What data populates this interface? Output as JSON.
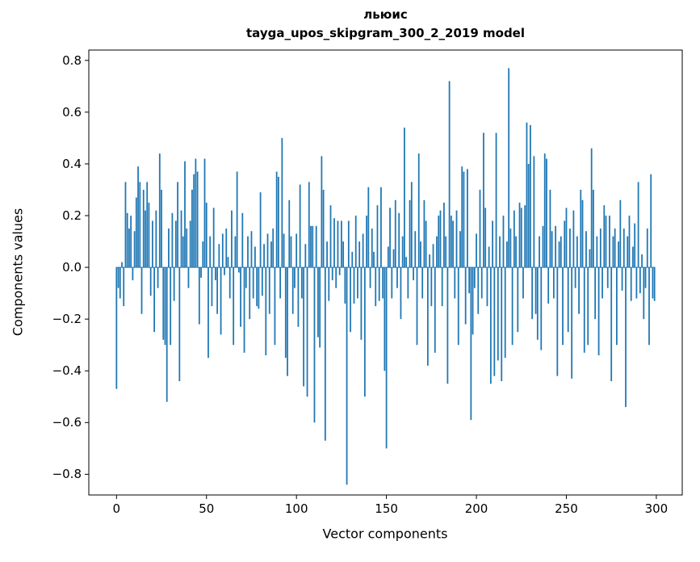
{
  "figure": {
    "title_line1": "льюис",
    "title_line2": "tayga_upos_skipgram_300_2_2019 model",
    "xlabel": "Vector components",
    "ylabel": "Components values"
  },
  "chart_data": {
    "type": "bar",
    "title": "льюис\ntayga_upos_skipgram_300_2_2019 model",
    "xlabel": "Vector components",
    "ylabel": "Components values",
    "bar_color": "#1f77b4",
    "grid": false,
    "legend": "none",
    "xlim": [
      -15.4,
      314.4
    ],
    "ylim": [
      -0.88,
      0.84
    ],
    "x_ticks": [
      0,
      50,
      100,
      150,
      200,
      250,
      300
    ],
    "x_tick_labels": [
      "0",
      "50",
      "100",
      "150",
      "200",
      "250",
      "300"
    ],
    "y_ticks": [
      0.8,
      0.6,
      0.4,
      0.2,
      0.0,
      -0.2,
      -0.4,
      -0.6,
      -0.8
    ],
    "y_tick_labels": [
      "0.8",
      "0.6",
      "0.4",
      "0.2",
      "0.0",
      "−0.2",
      "−0.4",
      "−0.6",
      "−0.8"
    ],
    "x_start": 0,
    "values": [
      -0.47,
      -0.08,
      -0.12,
      0.02,
      -0.15,
      0.33,
      0.21,
      0.15,
      0.2,
      -0.05,
      0.14,
      0.27,
      0.39,
      0.33,
      -0.18,
      0.3,
      0.22,
      0.33,
      0.25,
      -0.11,
      0.18,
      -0.25,
      0.22,
      -0.08,
      0.44,
      0.3,
      -0.28,
      -0.3,
      -0.52,
      0.15,
      -0.3,
      0.21,
      -0.13,
      0.18,
      0.33,
      -0.44,
      0.22,
      0.12,
      0.41,
      0.15,
      -0.08,
      0.18,
      0.3,
      0.36,
      0.42,
      0.37,
      -0.22,
      -0.04,
      0.1,
      0.42,
      0.25,
      -0.35,
      0.12,
      -0.15,
      0.23,
      -0.05,
      -0.18,
      0.09,
      -0.26,
      0.13,
      -0.03,
      0.15,
      0.04,
      -0.12,
      0.22,
      -0.3,
      0.12,
      0.37,
      -0.02,
      -0.23,
      0.21,
      -0.33,
      -0.08,
      0.12,
      -0.2,
      0.14,
      -0.12,
      0.08,
      -0.15,
      -0.16,
      0.29,
      -0.11,
      0.09,
      -0.34,
      0.13,
      -0.18,
      0.1,
      0.15,
      -0.3,
      0.37,
      0.35,
      -0.12,
      0.5,
      0.13,
      -0.35,
      -0.42,
      0.26,
      0.12,
      -0.18,
      -0.08,
      0.13,
      -0.23,
      0.32,
      -0.12,
      -0.46,
      0.09,
      -0.5,
      0.33,
      0.16,
      0.16,
      -0.6,
      0.16,
      -0.27,
      -0.31,
      0.43,
      0.3,
      -0.67,
      0.1,
      -0.13,
      0.24,
      -0.05,
      0.19,
      -0.08,
      0.18,
      -0.03,
      0.18,
      0.1,
      -0.14,
      -0.84,
      0.18,
      -0.25,
      0.06,
      -0.14,
      0.2,
      -0.12,
      0.1,
      -0.28,
      0.13,
      -0.5,
      0.2,
      0.31,
      -0.08,
      0.15,
      0.06,
      -0.15,
      0.24,
      -0.13,
      0.31,
      -0.12,
      -0.4,
      -0.7,
      0.08,
      0.23,
      -0.12,
      0.07,
      0.26,
      -0.08,
      0.21,
      -0.2,
      0.12,
      0.54,
      0.04,
      -0.12,
      0.26,
      0.33,
      -0.05,
      0.14,
      -0.3,
      0.44,
      0.1,
      -0.12,
      0.26,
      0.18,
      -0.38,
      0.05,
      -0.15,
      0.09,
      -0.33,
      0.12,
      0.2,
      0.22,
      -0.15,
      0.25,
      0.12,
      -0.45,
      0.72,
      0.2,
      0.18,
      -0.12,
      0.22,
      -0.3,
      0.14,
      0.39,
      0.37,
      -0.22,
      0.38,
      -0.1,
      -0.59,
      -0.26,
      -0.08,
      0.13,
      -0.18,
      0.3,
      -0.12,
      0.52,
      0.23,
      -0.15,
      0.08,
      -0.45,
      0.18,
      -0.42,
      0.52,
      -0.36,
      0.12,
      -0.44,
      0.2,
      -0.35,
      0.1,
      0.77,
      0.15,
      -0.3,
      0.22,
      0.12,
      -0.25,
      0.25,
      0.23,
      -0.12,
      0.24,
      0.56,
      0.4,
      0.55,
      -0.2,
      0.43,
      -0.18,
      -0.28,
      0.12,
      -0.32,
      0.16,
      0.44,
      0.42,
      -0.14,
      0.3,
      0.14,
      -0.12,
      0.16,
      -0.42,
      0.1,
      0.12,
      -0.3,
      0.18,
      0.23,
      -0.25,
      0.15,
      -0.43,
      0.22,
      -0.08,
      0.12,
      -0.18,
      0.3,
      0.26,
      -0.33,
      0.14,
      -0.3,
      0.07,
      0.46,
      0.3,
      -0.2,
      0.12,
      -0.34,
      0.15,
      -0.12,
      0.24,
      0.2,
      -0.08,
      0.2,
      -0.44,
      0.12,
      0.15,
      -0.3,
      0.1,
      0.26,
      -0.09,
      0.15,
      -0.54,
      0.12,
      0.2,
      -0.13,
      0.08,
      0.17,
      -0.12,
      0.33,
      -0.1,
      0.05,
      -0.2,
      -0.08,
      0.15,
      -0.3,
      0.36,
      -0.12,
      -0.13
    ]
  }
}
